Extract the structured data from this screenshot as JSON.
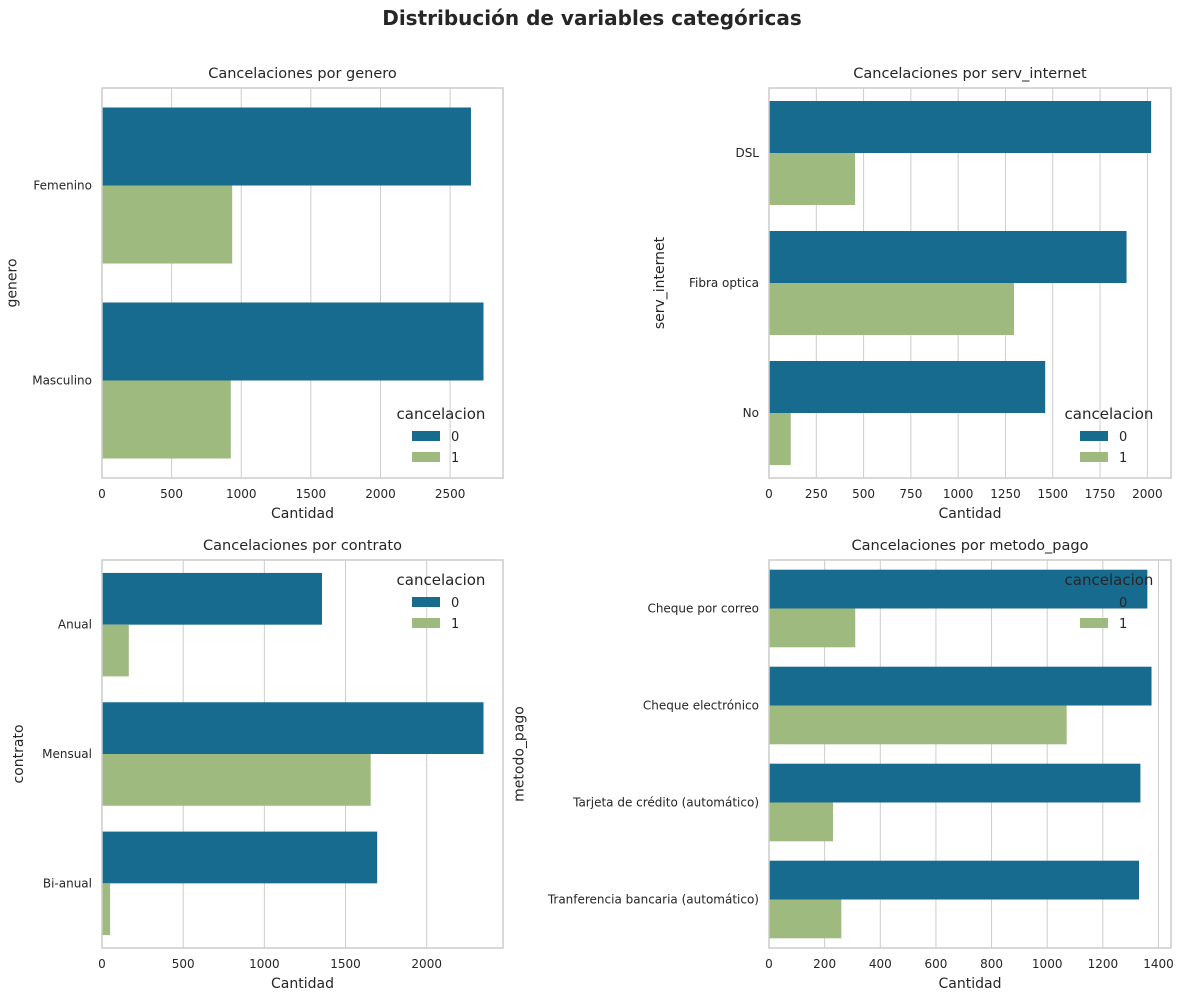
{
  "suptitle": "Distribución de variables categóricas",
  "colors": {
    "series_0": "#176b8f",
    "series_1": "#9eba7e",
    "grid": "#cccccc",
    "frame": "#cccccc"
  },
  "chart_data": [
    {
      "type": "bar",
      "orientation": "horizontal",
      "title": "Cancelaciones por genero",
      "xlabel": "Cantidad",
      "ylabel": "genero",
      "categories": [
        "Femenino",
        "Masculino"
      ],
      "series": [
        {
          "name": "0",
          "values": [
            2650,
            2740
          ]
        },
        {
          "name": "1",
          "values": [
            935,
            925
          ]
        }
      ],
      "xlim": [
        0,
        2880
      ],
      "xticks": [
        0,
        500,
        1000,
        1500,
        2000,
        2500
      ],
      "legend": {
        "title": "cancelacion",
        "position": "lower-right"
      },
      "grid": true
    },
    {
      "type": "bar",
      "orientation": "horizontal",
      "title": "Cancelaciones por serv_internet",
      "xlabel": "Cantidad",
      "ylabel": "serv_internet",
      "categories": [
        "DSL",
        "Fibra optica",
        "No"
      ],
      "series": [
        {
          "name": "0",
          "values": [
            2020,
            1890,
            1460
          ]
        },
        {
          "name": "1",
          "values": [
            455,
            1295,
            115
          ]
        }
      ],
      "xlim": [
        0,
        2125
      ],
      "xticks": [
        0,
        250,
        500,
        750,
        1000,
        1250,
        1500,
        1750,
        2000
      ],
      "legend": {
        "title": "cancelacion",
        "position": "lower-right"
      },
      "grid": true
    },
    {
      "type": "bar",
      "orientation": "horizontal",
      "title": "Cancelaciones por contrato",
      "xlabel": "Cantidad",
      "ylabel": "contrato",
      "categories": [
        "Anual",
        "Mensual",
        "Bi-anual"
      ],
      "series": [
        {
          "name": "0",
          "values": [
            1355,
            2350,
            1695
          ]
        },
        {
          "name": "1",
          "values": [
            165,
            1655,
            50
          ]
        }
      ],
      "xlim": [
        0,
        2470
      ],
      "xticks": [
        0,
        500,
        1000,
        1500,
        2000
      ],
      "legend": {
        "title": "cancelacion",
        "position": "upper-right"
      },
      "grid": true
    },
    {
      "type": "bar",
      "orientation": "horizontal",
      "title": "Cancelaciones por metodo_pago",
      "xlabel": "Cantidad",
      "ylabel": "metodo_pago",
      "categories": [
        "Cheque por correo",
        "Cheque electrónico",
        "Tarjeta de crédito (automático)",
        "Tranferencia bancaria (automático)"
      ],
      "series": [
        {
          "name": "0",
          "values": [
            1360,
            1375,
            1335,
            1330
          ]
        },
        {
          "name": "1",
          "values": [
            310,
            1070,
            230,
            260
          ]
        }
      ],
      "xlim": [
        0,
        1445
      ],
      "xticks": [
        0,
        200,
        400,
        600,
        800,
        1000,
        1200,
        1400
      ],
      "legend": {
        "title": "cancelacion",
        "position": "upper-right"
      },
      "grid": true
    }
  ]
}
